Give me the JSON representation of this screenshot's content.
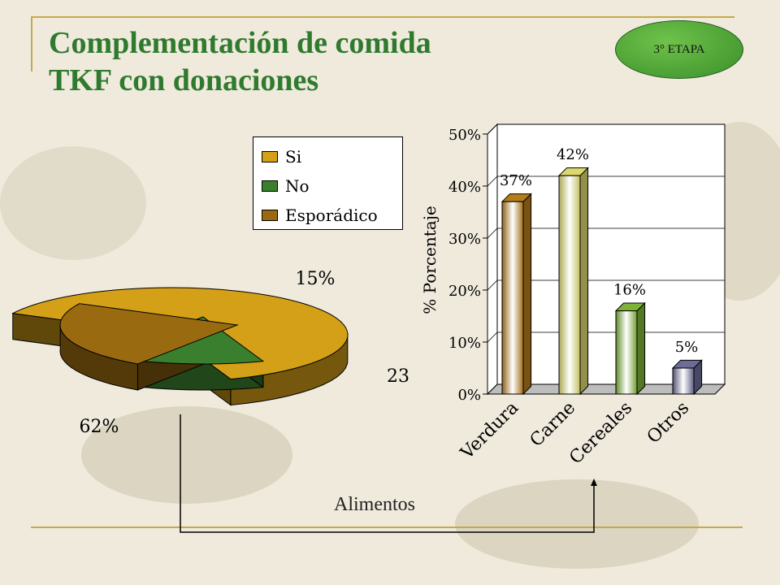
{
  "title": {
    "line1": "Complementación de comida",
    "line2": "TKF con donaciones"
  },
  "badge": "3° ETAPA",
  "chart_data": [
    {
      "type": "pie",
      "legend": [
        "Si",
        "No",
        "Esporádico"
      ],
      "slices": [
        {
          "name": "Si",
          "value": 62,
          "label": "62%",
          "color": "#d4a017"
        },
        {
          "name": "No",
          "value": 15,
          "label": "15%",
          "color": "#3a7f2e"
        },
        {
          "name": "Esporádico",
          "value": 23,
          "label": "23",
          "color": "#9a6a10"
        }
      ],
      "legend_placement": "top-right"
    },
    {
      "type": "bar",
      "categories": [
        "Verdura",
        "Carne",
        "Cereales",
        "Otros"
      ],
      "values": [
        37,
        42,
        16,
        5
      ],
      "data_labels": [
        "37%",
        "42%",
        "16%",
        "5%"
      ],
      "ylabel": "% Porcentaje",
      "xlabel": "Alimentos",
      "ylim": [
        0,
        50
      ],
      "yticks": [
        "0%",
        "10%",
        "20%",
        "30%",
        "40%",
        "50%"
      ],
      "grid": true,
      "colors": [
        "#c98a1e",
        "#f4f07a",
        "#8cc63f",
        "#7878a8"
      ]
    }
  ]
}
